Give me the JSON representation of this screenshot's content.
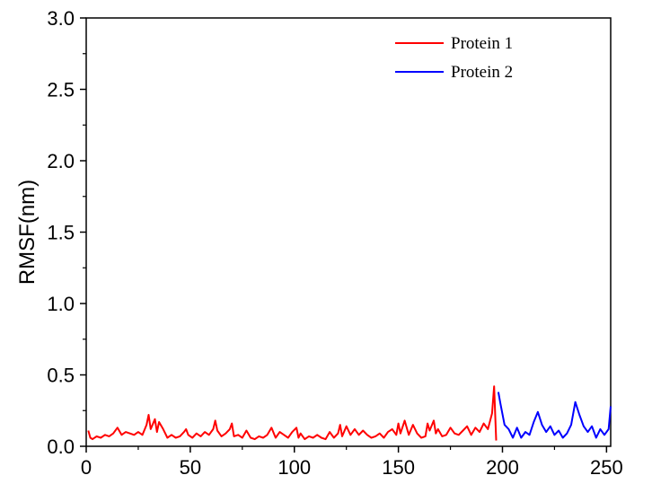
{
  "chart_data": {
    "type": "line",
    "title": "",
    "xlabel": "",
    "ylabel": "RMSF(nm)",
    "xlim": [
      0,
      252
    ],
    "ylim": [
      0,
      3.0
    ],
    "xticks": [
      0,
      50,
      100,
      150,
      200,
      250
    ],
    "yticks": [
      0.0,
      0.5,
      1.0,
      1.5,
      2.0,
      2.5,
      3.0
    ],
    "xtick_labels": [
      "0",
      "50",
      "100",
      "150",
      "200",
      "250"
    ],
    "ytick_labels": [
      "0.0",
      "0.5",
      "1.0",
      "1.5",
      "2.0",
      "2.5",
      "3.0"
    ],
    "grid": false,
    "legend_position": "top-right",
    "series": [
      {
        "name": "Protein 1",
        "color": "#ff0000",
        "x": [
          1,
          2,
          3,
          5,
          7,
          9,
          11,
          13,
          15,
          17,
          19,
          21,
          23,
          25,
          27,
          29,
          30,
          31,
          33,
          34,
          35,
          37,
          39,
          41,
          43,
          45,
          47,
          48,
          49,
          51,
          53,
          55,
          57,
          59,
          61,
          62,
          63,
          65,
          67,
          69,
          70,
          71,
          73,
          75,
          77,
          79,
          81,
          83,
          85,
          87,
          89,
          91,
          93,
          95,
          97,
          99,
          101,
          102,
          103,
          105,
          107,
          109,
          111,
          113,
          115,
          117,
          119,
          121,
          122,
          123,
          125,
          127,
          129,
          131,
          133,
          135,
          137,
          139,
          141,
          143,
          145,
          147,
          149,
          150,
          151,
          153,
          155,
          157,
          159,
          161,
          163,
          164,
          165,
          167,
          168,
          169,
          171,
          173,
          175,
          177,
          179,
          181,
          183,
          185,
          187,
          189,
          191,
          193,
          195,
          196,
          197
        ],
        "y": [
          0.11,
          0.06,
          0.05,
          0.07,
          0.06,
          0.08,
          0.07,
          0.09,
          0.13,
          0.08,
          0.1,
          0.09,
          0.08,
          0.1,
          0.08,
          0.15,
          0.22,
          0.12,
          0.19,
          0.1,
          0.17,
          0.12,
          0.06,
          0.08,
          0.06,
          0.07,
          0.1,
          0.12,
          0.08,
          0.06,
          0.09,
          0.07,
          0.1,
          0.08,
          0.12,
          0.18,
          0.11,
          0.07,
          0.09,
          0.12,
          0.16,
          0.07,
          0.08,
          0.06,
          0.11,
          0.06,
          0.05,
          0.07,
          0.06,
          0.08,
          0.13,
          0.06,
          0.1,
          0.08,
          0.06,
          0.1,
          0.13,
          0.06,
          0.09,
          0.05,
          0.07,
          0.06,
          0.08,
          0.06,
          0.05,
          0.1,
          0.06,
          0.09,
          0.15,
          0.07,
          0.14,
          0.08,
          0.12,
          0.08,
          0.11,
          0.08,
          0.06,
          0.07,
          0.09,
          0.06,
          0.1,
          0.12,
          0.08,
          0.16,
          0.09,
          0.18,
          0.08,
          0.15,
          0.09,
          0.06,
          0.07,
          0.16,
          0.11,
          0.18,
          0.09,
          0.12,
          0.07,
          0.08,
          0.13,
          0.09,
          0.08,
          0.11,
          0.14,
          0.08,
          0.13,
          0.1,
          0.16,
          0.12,
          0.23,
          0.42,
          0.04
        ]
      },
      {
        "name": "Protein 2",
        "color": "#0000ff",
        "x": [
          198,
          199,
          201,
          203,
          205,
          207,
          209,
          211,
          213,
          215,
          217,
          219,
          221,
          223,
          225,
          227,
          229,
          231,
          233,
          235,
          237,
          239,
          241,
          243,
          245,
          247,
          249,
          251,
          252
        ],
        "y": [
          0.38,
          0.3,
          0.15,
          0.12,
          0.06,
          0.13,
          0.06,
          0.1,
          0.08,
          0.17,
          0.24,
          0.15,
          0.1,
          0.14,
          0.08,
          0.11,
          0.06,
          0.09,
          0.15,
          0.31,
          0.22,
          0.14,
          0.1,
          0.14,
          0.06,
          0.12,
          0.08,
          0.12,
          0.28
        ]
      }
    ]
  }
}
